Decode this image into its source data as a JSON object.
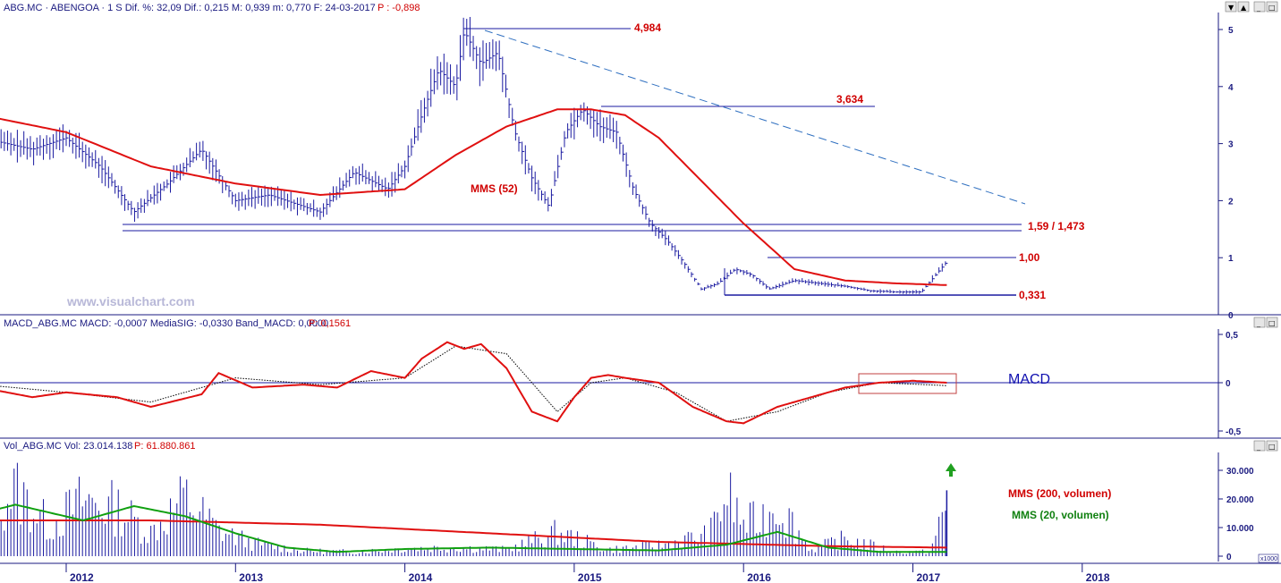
{
  "price_panel": {
    "header": {
      "prefix": "ABG.MC · ABENGOA · 1 S  Dif. %: 32,09  Dif.: 0,215  M: 0,939  m: 0,770  F: 24-03-2017",
      "perf": "P : -0,898"
    },
    "watermark": "www.visualchart.com",
    "annotations": {
      "high": "4,984",
      "mid_high": "3,634",
      "support": "1,59 / 1,473",
      "resist": "1,00",
      "low": "0,331",
      "ma_label": "MMS (52)"
    },
    "y_ticks": [
      "5",
      "4",
      "3",
      "2",
      "1",
      "0"
    ],
    "colors": {
      "bars": "#1a1aa0",
      "ma": "#e01010",
      "lines": "#1a1aa0",
      "trend": "#3070c0"
    }
  },
  "macd_panel": {
    "header": {
      "prefix": "MACD_ABG.MC  MACD: -0,0007  MediaSIG: -0,0330  Band_MACD: 0,0000",
      "perf": "P: 0,1561"
    },
    "label": "MACD",
    "y_ticks": [
      "0,5",
      "0",
      "-0,5"
    ],
    "colors": {
      "macd": "#e01010",
      "signal": "#000000",
      "highlight": "#c04040"
    }
  },
  "volume_panel": {
    "header": {
      "prefix": "Vol_ABG.MC  Vol: 23.014.138",
      "perf": "P: 61.880.861"
    },
    "label_ma200": "MMS (200, volumen)",
    "label_ma20": "MMS (20, volumen)",
    "y_ticks": [
      "30.000",
      "20.000",
      "10.000",
      "0"
    ],
    "unit": "x1000",
    "colors": {
      "bars": "#1a1aa0",
      "ma200": "#e01010",
      "ma20": "#10a010",
      "arrow": "#20a020"
    }
  },
  "x_axis": {
    "years": [
      "2012",
      "2013",
      "2014",
      "2015",
      "2016",
      "2017",
      "2018"
    ]
  },
  "chart_data": [
    {
      "type": "line",
      "title": "ABG.MC · ABENGOA · 1 S",
      "series": [
        {
          "name": "",
          "x": [
            2011.5,
            2011.8,
            2012.0,
            2012.2,
            2012.4,
            2012.6,
            2012.8,
            2013.0,
            2013.2,
            2013.4,
            2013.5,
            2013.7,
            2013.9,
            2014.0,
            2014.1,
            2014.2,
            2014.3,
            2014.35,
            2014.45,
            2014.55,
            2014.65,
            2014.75,
            2014.85,
            2014.95,
            2015.05,
            2015.15,
            2015.25,
            2015.35,
            2015.45,
            2015.55,
            2015.65,
            2015.75,
            2015.85,
            2015.95,
            2016.05,
            2016.15,
            2016.3,
            2016.45,
            2016.6,
            2016.75,
            2016.9,
            2017.05,
            2017.2
          ],
          "values": [
            3.1,
            2.9,
            3.1,
            2.6,
            1.8,
            2.3,
            2.9,
            2.0,
            2.1,
            1.9,
            1.8,
            2.5,
            2.2,
            2.6,
            3.5,
            4.3,
            4.0,
            4.98,
            4.4,
            4.6,
            3.2,
            2.4,
            1.9,
            3.2,
            3.6,
            3.3,
            3.2,
            2.2,
            1.6,
            1.3,
            0.9,
            0.45,
            0.55,
            0.8,
            0.7,
            0.45,
            0.6,
            0.55,
            0.5,
            0.42,
            0.4,
            0.4,
            0.93
          ]
        },
        {
          "name": "MMS (52)",
          "x": [
            2011.5,
            2012.0,
            2012.5,
            2013.0,
            2013.5,
            2014.0,
            2014.3,
            2014.6,
            2014.9,
            2015.1,
            2015.3,
            2015.5,
            2015.7,
            2016.0,
            2016.3,
            2016.6,
            2016.9,
            2017.2
          ],
          "values": [
            3.5,
            3.2,
            2.6,
            2.3,
            2.1,
            2.2,
            2.8,
            3.3,
            3.6,
            3.6,
            3.5,
            3.1,
            2.5,
            1.6,
            0.8,
            0.6,
            0.55,
            0.52
          ]
        }
      ],
      "ylim": [
        0,
        5.2
      ],
      "xlim": [
        2011.5,
        2018.3
      ],
      "annotations": [
        "4,984",
        "3,634",
        "1,59 / 1,473",
        "1,00",
        "0,331",
        "MMS (52)"
      ]
    },
    {
      "type": "line",
      "title": "MACD_ABG.MC",
      "series": [
        {
          "name": "MACD",
          "x": [
            2011.5,
            2011.8,
            2012.0,
            2012.3,
            2012.5,
            2012.8,
            2012.9,
            2013.1,
            2013.4,
            2013.6,
            2013.8,
            2014.0,
            2014.1,
            2014.25,
            2014.35,
            2014.45,
            2014.6,
            2014.75,
            2014.9,
            2015.0,
            2015.1,
            2015.2,
            2015.3,
            2015.5,
            2015.7,
            2015.9,
            2016.0,
            2016.2,
            2016.4,
            2016.6,
            2016.8,
            2017.0,
            2017.2
          ],
          "values": [
            -0.05,
            -0.15,
            -0.1,
            -0.15,
            -0.25,
            -0.12,
            0.1,
            -0.05,
            -0.02,
            -0.05,
            0.12,
            0.05,
            0.25,
            0.42,
            0.35,
            0.4,
            0.15,
            -0.3,
            -0.4,
            -0.15,
            0.05,
            0.08,
            0.05,
            0.0,
            -0.25,
            -0.4,
            -0.42,
            -0.25,
            -0.15,
            -0.05,
            0.0,
            0.02,
            0.0
          ]
        },
        {
          "name": "MediaSIG",
          "x": [
            2011.5,
            2012.0,
            2012.5,
            2013.0,
            2013.5,
            2014.0,
            2014.3,
            2014.6,
            2014.9,
            2015.1,
            2015.3,
            2015.6,
            2015.9,
            2016.2,
            2016.5,
            2016.8,
            2017.2
          ],
          "values": [
            -0.02,
            -0.1,
            -0.2,
            0.05,
            -0.02,
            0.05,
            0.38,
            0.3,
            -0.3,
            0.0,
            0.05,
            -0.1,
            -0.4,
            -0.3,
            -0.1,
            0.0,
            -0.03
          ]
        }
      ],
      "ylim": [
        -0.5,
        0.5
      ],
      "xlim": [
        2011.5,
        2018.3
      ],
      "annotations": [
        "MACD"
      ]
    },
    {
      "type": "bar",
      "title": "Vol_ABG.MC",
      "series": [
        {
          "name": "",
          "x": [
            2011.5,
            2011.7,
            2011.9,
            2012.1,
            2012.3,
            2012.5,
            2012.7,
            2012.9,
            2013.1,
            2013.4,
            2013.7,
            2014.0,
            2014.3,
            2014.6,
            2014.9,
            2015.2,
            2015.5,
            2015.8,
            2015.9,
            2016.0,
            2016.1,
            2016.2,
            2016.4,
            2016.6,
            2016.9,
            2017.1,
            2017.2
          ],
          "values": [
            15000,
            31000,
            14000,
            26000,
            22000,
            11000,
            27000,
            12000,
            6000,
            2500,
            2000,
            3500,
            4000,
            3000,
            11000,
            3000,
            5000,
            10000,
            29000,
            15000,
            17000,
            25000,
            3000,
            8000,
            2000,
            2000,
            23014
          ]
        },
        {
          "name": "MMS (200, volumen)",
          "x": [
            2011.5,
            2012.5,
            2013.5,
            2014.5,
            2015.5,
            2016.5,
            2017.2
          ],
          "values": [
            12500,
            12500,
            11000,
            8000,
            5000,
            3500,
            3000
          ]
        },
        {
          "name": "MMS (20, volumen)",
          "x": [
            2011.5,
            2011.7,
            2012.1,
            2012.4,
            2012.7,
            2013.0,
            2013.3,
            2013.6,
            2014.0,
            2014.5,
            2015.0,
            2015.5,
            2015.9,
            2016.2,
            2016.5,
            2016.8,
            2017.2
          ],
          "values": [
            15000,
            18000,
            12500,
            17500,
            14000,
            8000,
            3000,
            1500,
            2500,
            3000,
            2500,
            2000,
            4000,
            8500,
            3000,
            1500,
            1500
          ]
        }
      ],
      "ylim": [
        0,
        33000
      ],
      "xlim": [
        2011.5,
        2018.3
      ],
      "annotations": [
        "MMS (200, volumen)",
        "MMS (20, volumen)"
      ]
    }
  ]
}
